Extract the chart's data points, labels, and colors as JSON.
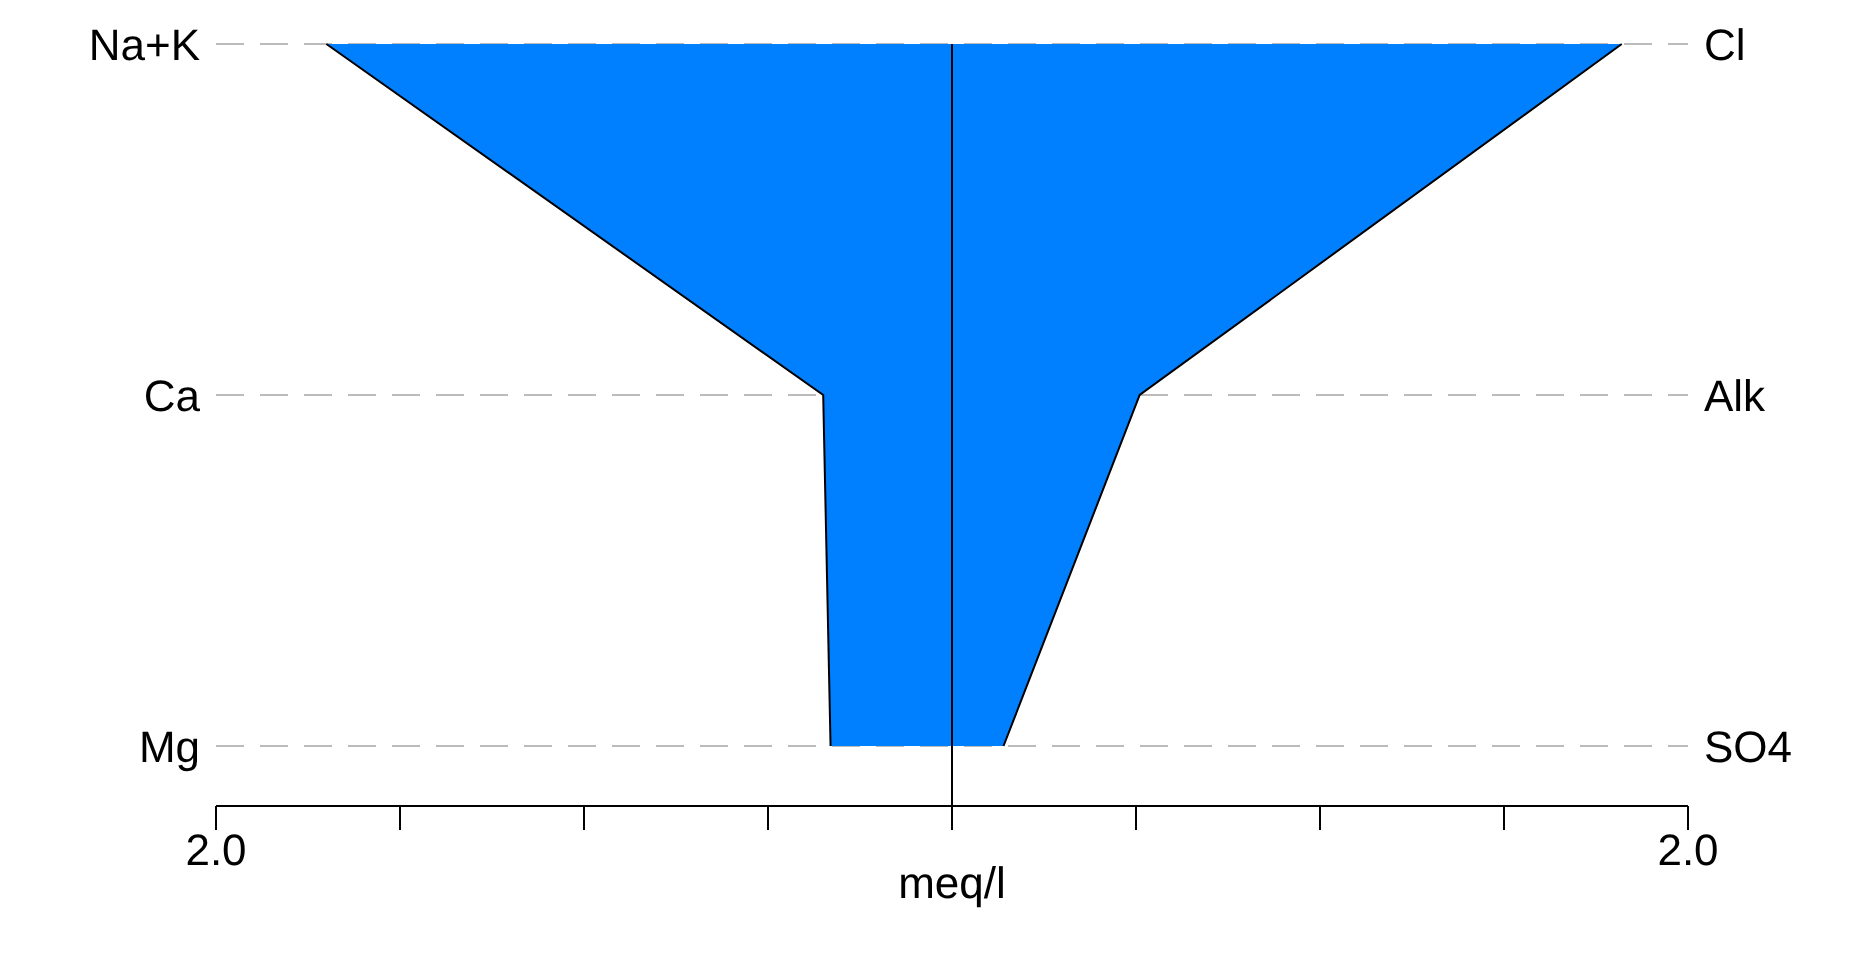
{
  "chart_data": {
    "type": "area",
    "orientation": "horizontal",
    "xlabel": "meq/l",
    "categories": [
      "Na+K",
      "Ca",
      "Mg"
    ],
    "y2_categories": [
      "Cl",
      "Alk",
      "SO4"
    ],
    "series": [
      {
        "color": "#0080ff",
        "values": [
          -1.7,
          -0.35,
          -0.33
        ]
      },
      {
        "color": "#0080ff",
        "values": [
          1.82,
          0.51,
          0.14
        ]
      }
    ],
    "xlim": [
      -2,
      2
    ],
    "xticks": [
      {
        "value": -2,
        "label": "2.0"
      },
      {
        "value": -1.5,
        "label": null
      },
      {
        "value": -1,
        "label": null
      },
      {
        "value": -0.5,
        "label": null
      },
      {
        "value": 0,
        "label": null
      },
      {
        "value": 0.5,
        "label": null
      },
      {
        "value": 1,
        "label": null
      },
      {
        "value": 1.5,
        "label": null
      },
      {
        "value": 2,
        "label": "2.0"
      }
    ],
    "grid": "y",
    "ref_lines": [
      {
        "axis": "x",
        "value": 0,
        "label": null,
        "color": "#000000"
      }
    ]
  }
}
